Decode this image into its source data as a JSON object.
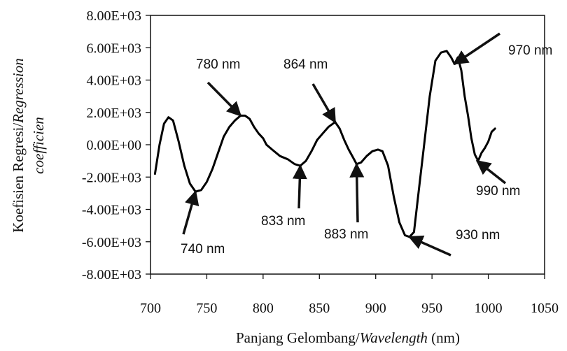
{
  "chart_data": {
    "type": "line",
    "title": "",
    "xlabel": {
      "normal": "Panjang Gelombang/",
      "italic": "Wavelength",
      "suffix": " (nm)"
    },
    "ylabel": {
      "line1_normal": "Koefisien Regresi/",
      "line1_italic": "Regression",
      "line2_italic": "coefficien"
    },
    "xlim": [
      700,
      1050
    ],
    "ylim": [
      -8000,
      8000
    ],
    "x_ticks": [
      700,
      750,
      800,
      850,
      900,
      950,
      1000,
      1050
    ],
    "x_tick_labels": [
      "700",
      "750",
      "800",
      "850",
      "900",
      "950",
      "1000",
      "1050"
    ],
    "y_ticks": [
      8000,
      6000,
      4000,
      2000,
      0,
      -2000,
      -4000,
      -6000,
      -8000
    ],
    "y_tick_labels": [
      "8.00E+03",
      "6.00E+03",
      "4.00E+03",
      "2.00E+03",
      "0.00E+00",
      "-2.00E+03",
      "-4.00E+03",
      "-6.00E+03",
      "-8.00E+03"
    ],
    "grid": false,
    "series": [
      {
        "color": "#000000",
        "points": [
          [
            704,
            -1800
          ],
          [
            708,
            0
          ],
          [
            712,
            1300
          ],
          [
            716,
            1700
          ],
          [
            720,
            1500
          ],
          [
            725,
            200
          ],
          [
            730,
            -1300
          ],
          [
            735,
            -2400
          ],
          [
            740,
            -2900
          ],
          [
            745,
            -2800
          ],
          [
            750,
            -2300
          ],
          [
            755,
            -1500
          ],
          [
            760,
            -500
          ],
          [
            765,
            500
          ],
          [
            770,
            1100
          ],
          [
            775,
            1500
          ],
          [
            780,
            1800
          ],
          [
            784,
            1800
          ],
          [
            788,
            1600
          ],
          [
            792,
            1100
          ],
          [
            796,
            700
          ],
          [
            800,
            400
          ],
          [
            803,
            0
          ],
          [
            808,
            -300
          ],
          [
            815,
            -700
          ],
          [
            822,
            -900
          ],
          [
            828,
            -1200
          ],
          [
            833,
            -1300
          ],
          [
            838,
            -1000
          ],
          [
            843,
            -400
          ],
          [
            848,
            300
          ],
          [
            853,
            700
          ],
          [
            858,
            1100
          ],
          [
            864,
            1400
          ],
          [
            868,
            1000
          ],
          [
            872,
            300
          ],
          [
            876,
            -300
          ],
          [
            880,
            -800
          ],
          [
            883,
            -1200
          ],
          [
            887,
            -1100
          ],
          [
            892,
            -700
          ],
          [
            897,
            -400
          ],
          [
            902,
            -300
          ],
          [
            906,
            -400
          ],
          [
            911,
            -1300
          ],
          [
            916,
            -3200
          ],
          [
            921,
            -4800
          ],
          [
            926,
            -5600
          ],
          [
            930,
            -5700
          ],
          [
            934,
            -5400
          ],
          [
            938,
            -3000
          ],
          [
            943,
            0
          ],
          [
            948,
            3000
          ],
          [
            953,
            5200
          ],
          [
            958,
            5700
          ],
          [
            963,
            5800
          ],
          [
            967,
            5400
          ],
          [
            970,
            5000
          ],
          [
            973,
            5400
          ],
          [
            976,
            4600
          ],
          [
            979,
            3000
          ],
          [
            982,
            1800
          ],
          [
            985,
            400
          ],
          [
            988,
            -600
          ],
          [
            991,
            -1000
          ],
          [
            994,
            -500
          ],
          [
            997,
            -200
          ],
          [
            1000,
            200
          ],
          [
            1003,
            800
          ],
          [
            1006,
            1000
          ]
        ]
      }
    ],
    "annotations": [
      {
        "text": "740 nm",
        "x": 740,
        "y": -2900
      },
      {
        "text": "780 nm",
        "x": 780,
        "y": 1800
      },
      {
        "text": "833 nm",
        "x": 833,
        "y": -1300
      },
      {
        "text": "864 nm",
        "x": 864,
        "y": 1400
      },
      {
        "text": "883 nm",
        "x": 883,
        "y": -1200
      },
      {
        "text": "930 nm",
        "x": 930,
        "y": -5700
      },
      {
        "text": "970 nm",
        "x": 970,
        "y": 5000
      },
      {
        "text": "990 nm",
        "x": 990,
        "y": -1000
      }
    ]
  }
}
